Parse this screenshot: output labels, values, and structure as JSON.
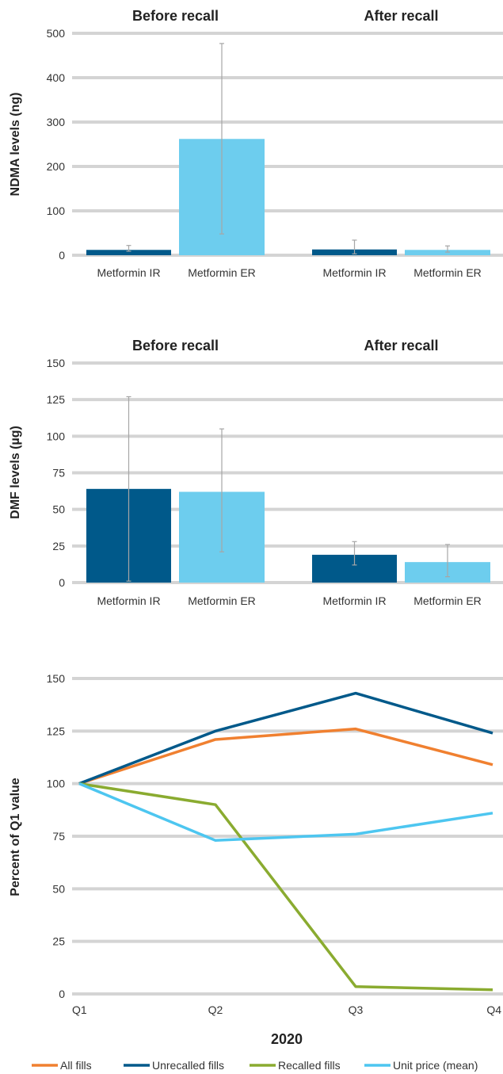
{
  "chart_data": [
    {
      "type": "bar",
      "ylabel": "NDMA levels (ng)",
      "ylim": [
        0,
        500
      ],
      "yticks": [
        0,
        100,
        200,
        300,
        400,
        500
      ],
      "grid": true,
      "groups": [
        {
          "title": "Before recall",
          "bars": [
            {
              "label": "Metformin IR",
              "value": 12,
              "err_low": 9,
              "err_high": 22,
              "color": "#00598a"
            },
            {
              "label": "Metformin ER",
              "value": 262,
              "err_low": 48,
              "err_high": 477,
              "color": "#6dcdee"
            }
          ]
        },
        {
          "title": "After recall",
          "bars": [
            {
              "label": "Metformin IR",
              "value": 13,
              "err_low": 3,
              "err_high": 34,
              "color": "#00598a"
            },
            {
              "label": "Metformin ER",
              "value": 12,
              "err_low": 7,
              "err_high": 21,
              "color": "#6dcdee"
            }
          ]
        }
      ]
    },
    {
      "type": "bar",
      "ylabel": "DMF levels (µg)",
      "ylim": [
        0,
        150
      ],
      "yticks": [
        0,
        25,
        50,
        75,
        100,
        125,
        150
      ],
      "grid": true,
      "groups": [
        {
          "title": "Before recall",
          "bars": [
            {
              "label": "Metformin IR",
              "value": 64,
              "err_low": 1,
              "err_high": 127,
              "color": "#00598a"
            },
            {
              "label": "Metformin ER",
              "value": 62,
              "err_low": 21,
              "err_high": 105,
              "color": "#6dcdee"
            }
          ]
        },
        {
          "title": "After recall",
          "bars": [
            {
              "label": "Metformin IR",
              "value": 19,
              "err_low": 12,
              "err_high": 28,
              "color": "#00598a"
            },
            {
              "label": "Metformin ER",
              "value": 14,
              "err_low": 4,
              "err_high": 26,
              "color": "#6dcdee"
            }
          ]
        }
      ]
    },
    {
      "type": "line",
      "ylabel": "Percent of Q1 value",
      "xlabel": "2020",
      "ylim": [
        0,
        150
      ],
      "yticks": [
        0,
        25,
        50,
        75,
        100,
        125,
        150
      ],
      "categories": [
        "Q1",
        "Q2",
        "Q3",
        "Q4"
      ],
      "grid": true,
      "legend_position": "bottom",
      "series": [
        {
          "name": "All fills",
          "color": "#f08030",
          "values": [
            100,
            121,
            126,
            109
          ]
        },
        {
          "name": "Unrecalled fills",
          "color": "#00598a",
          "values": [
            100,
            125,
            143,
            124
          ]
        },
        {
          "name": "Recalled fills",
          "color": "#8aab30",
          "values": [
            100,
            90,
            3.5,
            2
          ]
        },
        {
          "name": "Unit price (mean)",
          "color": "#4dc6f0",
          "values": [
            100,
            73,
            76,
            86
          ]
        }
      ]
    }
  ]
}
